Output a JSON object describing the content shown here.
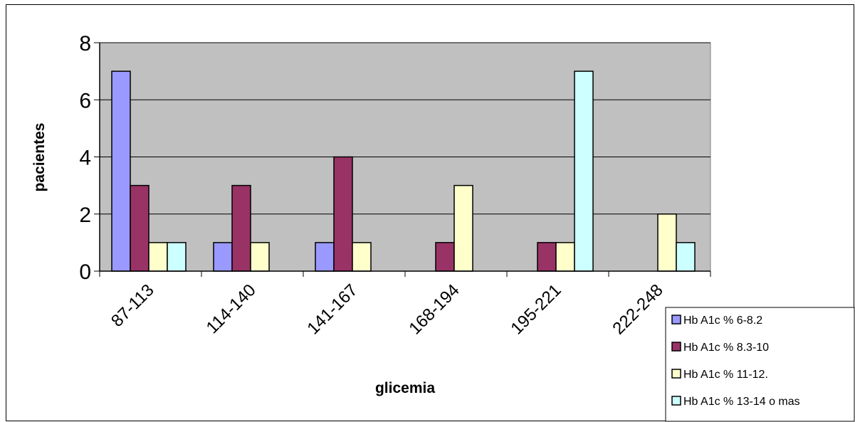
{
  "chart_data": {
    "type": "bar",
    "title": "",
    "xlabel": "glicemia",
    "ylabel": "pacientes",
    "categories": [
      "87-113",
      "114-140",
      "141-167",
      "168-194",
      "195-221",
      "222-248"
    ],
    "series": [
      {
        "name": "Hb A1c % 6-8.2",
        "color": "#9999ff",
        "values": [
          7,
          1,
          1,
          0,
          0,
          0
        ]
      },
      {
        "name": "Hb A1c % 8.3-10",
        "color": "#993366",
        "values": [
          3,
          3,
          4,
          1,
          1,
          0
        ]
      },
      {
        "name": "Hb A1c % 11-12.",
        "color": "#ffffcc",
        "values": [
          1,
          1,
          1,
          3,
          1,
          2
        ]
      },
      {
        "name": "Hb A1c % 13-14 o mas",
        "color": "#ccffff",
        "values": [
          1,
          0,
          0,
          0,
          7,
          1
        ]
      }
    ],
    "ylim": [
      0,
      8
    ],
    "yticks": [
      0,
      2,
      4,
      6,
      8
    ],
    "grid": true,
    "legend_position": "bottom-right",
    "plot_background": "#c0c0c0"
  }
}
